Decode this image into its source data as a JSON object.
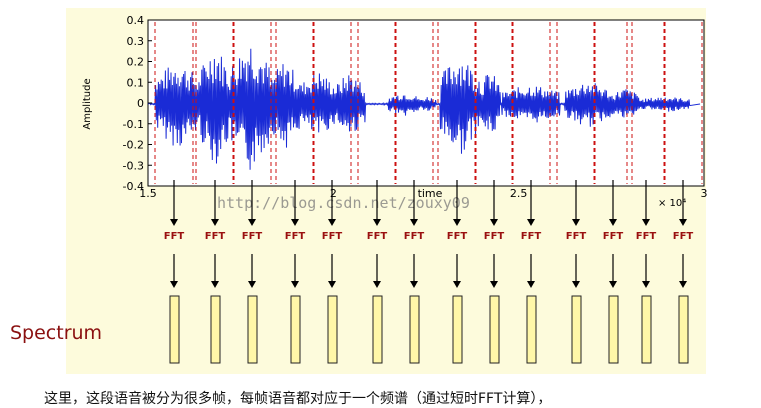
{
  "diagram": {
    "y_axis_label": "Amplitude",
    "x_axis_label": "time",
    "x_scale_note": "× 10⁴",
    "y_ticks": [
      "0.4",
      "0.3",
      "0.2",
      "0.1",
      "0",
      "-0.1",
      "-0.2",
      "-0.3",
      "-0.4"
    ],
    "x_ticks": [
      "1.5",
      "2",
      "2.5",
      "3"
    ],
    "fft_label": "FFT",
    "frame_count": 14,
    "spectrum_label": "Spectrum",
    "watermark": "http://blog.csdn.net/zouxy09",
    "colors": {
      "background_panel": "#fdfbdc",
      "waveform": "#1a2bd6",
      "frame_lines": "#cc1111",
      "fft_text": "#9a1010",
      "spectrum_text": "#8a1010",
      "spectrum_bar_fill": "#fff7a8",
      "spectrum_bar_stroke": "#222222"
    }
  },
  "caption": "这里，这段语音被分为很多帧，每帧语音都对应于一个频谱（通过短时FFT计算），"
}
